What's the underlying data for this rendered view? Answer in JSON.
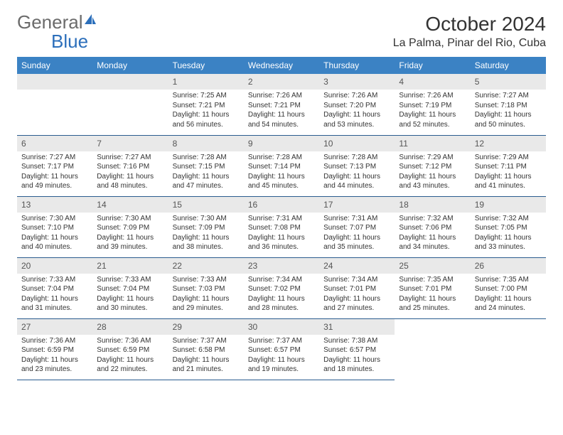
{
  "logo": {
    "text1": "General",
    "text2": "Blue"
  },
  "title": "October 2024",
  "location": "La Palma, Pinar del Rio, Cuba",
  "colors": {
    "header_bg": "#3b82c4",
    "header_text": "#ffffff",
    "daynum_bg": "#e9e9e9",
    "border": "#2a5c8f",
    "logo_gray": "#6b6b6b",
    "logo_blue": "#2c6fbb"
  },
  "day_headers": [
    "Sunday",
    "Monday",
    "Tuesday",
    "Wednesday",
    "Thursday",
    "Friday",
    "Saturday"
  ],
  "weeks": [
    [
      null,
      null,
      {
        "n": "1",
        "sunrise": "7:25 AM",
        "sunset": "7:21 PM",
        "daylight": "11 hours and 56 minutes."
      },
      {
        "n": "2",
        "sunrise": "7:26 AM",
        "sunset": "7:21 PM",
        "daylight": "11 hours and 54 minutes."
      },
      {
        "n": "3",
        "sunrise": "7:26 AM",
        "sunset": "7:20 PM",
        "daylight": "11 hours and 53 minutes."
      },
      {
        "n": "4",
        "sunrise": "7:26 AM",
        "sunset": "7:19 PM",
        "daylight": "11 hours and 52 minutes."
      },
      {
        "n": "5",
        "sunrise": "7:27 AM",
        "sunset": "7:18 PM",
        "daylight": "11 hours and 50 minutes."
      }
    ],
    [
      {
        "n": "6",
        "sunrise": "7:27 AM",
        "sunset": "7:17 PM",
        "daylight": "11 hours and 49 minutes."
      },
      {
        "n": "7",
        "sunrise": "7:27 AM",
        "sunset": "7:16 PM",
        "daylight": "11 hours and 48 minutes."
      },
      {
        "n": "8",
        "sunrise": "7:28 AM",
        "sunset": "7:15 PM",
        "daylight": "11 hours and 47 minutes."
      },
      {
        "n": "9",
        "sunrise": "7:28 AM",
        "sunset": "7:14 PM",
        "daylight": "11 hours and 45 minutes."
      },
      {
        "n": "10",
        "sunrise": "7:28 AM",
        "sunset": "7:13 PM",
        "daylight": "11 hours and 44 minutes."
      },
      {
        "n": "11",
        "sunrise": "7:29 AM",
        "sunset": "7:12 PM",
        "daylight": "11 hours and 43 minutes."
      },
      {
        "n": "12",
        "sunrise": "7:29 AM",
        "sunset": "7:11 PM",
        "daylight": "11 hours and 41 minutes."
      }
    ],
    [
      {
        "n": "13",
        "sunrise": "7:30 AM",
        "sunset": "7:10 PM",
        "daylight": "11 hours and 40 minutes."
      },
      {
        "n": "14",
        "sunrise": "7:30 AM",
        "sunset": "7:09 PM",
        "daylight": "11 hours and 39 minutes."
      },
      {
        "n": "15",
        "sunrise": "7:30 AM",
        "sunset": "7:09 PM",
        "daylight": "11 hours and 38 minutes."
      },
      {
        "n": "16",
        "sunrise": "7:31 AM",
        "sunset": "7:08 PM",
        "daylight": "11 hours and 36 minutes."
      },
      {
        "n": "17",
        "sunrise": "7:31 AM",
        "sunset": "7:07 PM",
        "daylight": "11 hours and 35 minutes."
      },
      {
        "n": "18",
        "sunrise": "7:32 AM",
        "sunset": "7:06 PM",
        "daylight": "11 hours and 34 minutes."
      },
      {
        "n": "19",
        "sunrise": "7:32 AM",
        "sunset": "7:05 PM",
        "daylight": "11 hours and 33 minutes."
      }
    ],
    [
      {
        "n": "20",
        "sunrise": "7:33 AM",
        "sunset": "7:04 PM",
        "daylight": "11 hours and 31 minutes."
      },
      {
        "n": "21",
        "sunrise": "7:33 AM",
        "sunset": "7:04 PM",
        "daylight": "11 hours and 30 minutes."
      },
      {
        "n": "22",
        "sunrise": "7:33 AM",
        "sunset": "7:03 PM",
        "daylight": "11 hours and 29 minutes."
      },
      {
        "n": "23",
        "sunrise": "7:34 AM",
        "sunset": "7:02 PM",
        "daylight": "11 hours and 28 minutes."
      },
      {
        "n": "24",
        "sunrise": "7:34 AM",
        "sunset": "7:01 PM",
        "daylight": "11 hours and 27 minutes."
      },
      {
        "n": "25",
        "sunrise": "7:35 AM",
        "sunset": "7:01 PM",
        "daylight": "11 hours and 25 minutes."
      },
      {
        "n": "26",
        "sunrise": "7:35 AM",
        "sunset": "7:00 PM",
        "daylight": "11 hours and 24 minutes."
      }
    ],
    [
      {
        "n": "27",
        "sunrise": "7:36 AM",
        "sunset": "6:59 PM",
        "daylight": "11 hours and 23 minutes."
      },
      {
        "n": "28",
        "sunrise": "7:36 AM",
        "sunset": "6:59 PM",
        "daylight": "11 hours and 22 minutes."
      },
      {
        "n": "29",
        "sunrise": "7:37 AM",
        "sunset": "6:58 PM",
        "daylight": "11 hours and 21 minutes."
      },
      {
        "n": "30",
        "sunrise": "7:37 AM",
        "sunset": "6:57 PM",
        "daylight": "11 hours and 19 minutes."
      },
      {
        "n": "31",
        "sunrise": "7:38 AM",
        "sunset": "6:57 PM",
        "daylight": "11 hours and 18 minutes."
      },
      null,
      null
    ]
  ]
}
